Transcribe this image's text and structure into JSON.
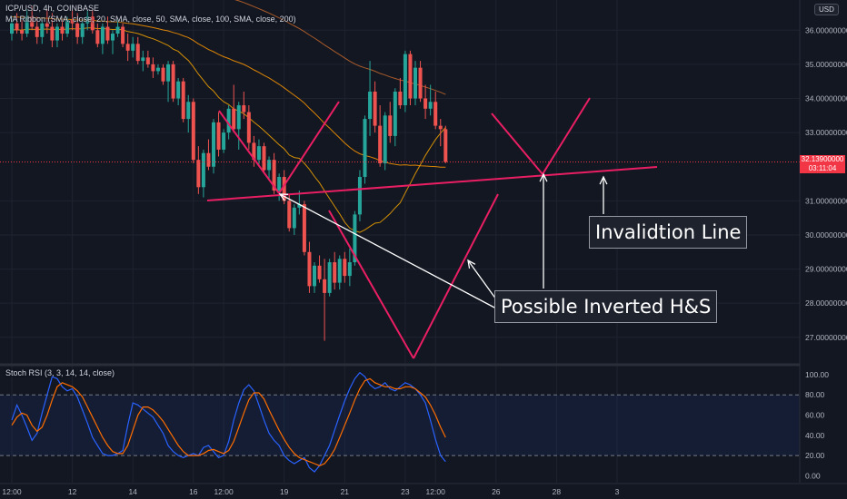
{
  "header": {
    "symbol_line": "ICP/USD, 4h, COINBASE",
    "ma_line": "MA Ribbon (SMA, close, 20, SMA, close, 50, SMA, close, 100, SMA, close, 200)",
    "stoch_line": "Stoch RSI (3, 3, 14, 14, close)",
    "currency_badge": "USD"
  },
  "last_price": {
    "price": "32.13900000",
    "countdown": "03:11:04",
    "color": "#f23645"
  },
  "annotations": {
    "invalidation": "Invalidtion Line",
    "pattern": "Possible Inverted H&S"
  },
  "colors": {
    "up": "#26a69a",
    "down": "#ef5350",
    "drawing": "#e91e63",
    "ma20": "#f7a600",
    "ma50": "#ff9800",
    "ma100": "#c4672b",
    "stoch_k": "#2962ff",
    "stoch_d": "#ff6d00"
  },
  "chart_data": [
    {
      "type": "candlestick",
      "price_ticks": [
        "36.00000000",
        "35.00000000",
        "34.00000000",
        "33.00000000",
        "31.00000000",
        "30.00000000",
        "29.00000000",
        "28.00000000",
        "27.00000000"
      ],
      "price_tick_values": [
        36,
        35,
        34,
        33,
        31,
        30,
        29,
        28,
        27
      ],
      "ylim": [
        26.25,
        36.3
      ],
      "time_labels": [
        "12:00",
        "12",
        "14",
        "16",
        "12:00",
        "19",
        "21",
        "23",
        "12:00",
        "26",
        "28",
        "3"
      ],
      "time_label_candle_index": [
        0,
        12,
        24,
        36,
        42,
        54,
        66,
        78,
        84,
        96,
        108,
        120
      ],
      "candles": [
        [
          35.9,
          36.4,
          35.7,
          36.2
        ],
        [
          36.2,
          36.5,
          35.9,
          36.0
        ],
        [
          36.0,
          36.3,
          35.7,
          35.9
        ],
        [
          35.9,
          36.6,
          35.8,
          36.4
        ],
        [
          36.4,
          36.7,
          36.0,
          36.1
        ],
        [
          36.1,
          36.4,
          35.6,
          35.8
        ],
        [
          35.8,
          36.3,
          35.6,
          36.2
        ],
        [
          36.2,
          36.6,
          35.9,
          36.1
        ],
        [
          36.1,
          36.5,
          35.5,
          35.7
        ],
        [
          35.7,
          36.2,
          35.5,
          36.1
        ],
        [
          36.1,
          36.3,
          35.7,
          35.9
        ],
        [
          35.9,
          36.4,
          35.8,
          36.3
        ],
        [
          36.3,
          36.6,
          36.0,
          36.2
        ],
        [
          36.2,
          36.5,
          35.6,
          35.8
        ],
        [
          35.8,
          36.3,
          35.6,
          36.2
        ],
        [
          36.2,
          36.6,
          36.0,
          36.4
        ],
        [
          36.4,
          36.6,
          35.9,
          36.0
        ],
        [
          36.0,
          36.2,
          35.5,
          35.6
        ],
        [
          35.6,
          36.2,
          35.3,
          36.1
        ],
        [
          36.1,
          36.4,
          35.6,
          35.7
        ],
        [
          35.7,
          36.0,
          35.3,
          35.9
        ],
        [
          35.9,
          36.3,
          35.8,
          36.1
        ],
        [
          36.1,
          36.2,
          35.5,
          35.6
        ],
        [
          35.6,
          35.9,
          35.1,
          35.4
        ],
        [
          35.4,
          35.8,
          35.2,
          35.6
        ],
        [
          35.6,
          35.8,
          35.0,
          35.1
        ],
        [
          35.1,
          35.4,
          34.8,
          35.2
        ],
        [
          35.2,
          35.4,
          34.9,
          35.0
        ],
        [
          35.0,
          35.2,
          34.6,
          34.8
        ],
        [
          34.8,
          35.0,
          34.7,
          34.9
        ],
        [
          34.9,
          35.0,
          34.4,
          34.5
        ],
        [
          34.5,
          35.1,
          33.9,
          35.0
        ],
        [
          35.0,
          35.1,
          33.9,
          34.0
        ],
        [
          34.0,
          34.6,
          33.8,
          34.5
        ],
        [
          34.5,
          34.6,
          33.3,
          33.4
        ],
        [
          33.4,
          34.1,
          33.0,
          33.9
        ],
        [
          33.9,
          34.0,
          32.1,
          32.2
        ],
        [
          32.2,
          32.6,
          31.2,
          31.4
        ],
        [
          31.4,
          32.5,
          31.1,
          32.4
        ],
        [
          32.4,
          32.8,
          31.9,
          32.0
        ],
        [
          32.0,
          33.4,
          31.8,
          33.3
        ],
        [
          33.3,
          33.6,
          32.3,
          32.5
        ],
        [
          32.5,
          33.1,
          32.4,
          33.0
        ],
        [
          33.0,
          33.8,
          32.8,
          33.7
        ],
        [
          33.7,
          34.4,
          33.0,
          33.1
        ],
        [
          33.1,
          33.9,
          32.5,
          33.8
        ],
        [
          33.8,
          34.2,
          33.4,
          33.6
        ],
        [
          33.6,
          33.8,
          32.5,
          32.7
        ],
        [
          32.7,
          32.9,
          32.0,
          32.2
        ],
        [
          32.2,
          32.8,
          32.0,
          32.6
        ],
        [
          32.6,
          32.7,
          31.8,
          31.9
        ],
        [
          31.9,
          32.3,
          31.6,
          32.2
        ],
        [
          32.2,
          32.4,
          31.2,
          31.3
        ],
        [
          31.3,
          31.8,
          31.0,
          31.7
        ],
        [
          31.7,
          31.9,
          30.9,
          31.0
        ],
        [
          31.0,
          31.2,
          30.1,
          30.2
        ],
        [
          30.2,
          30.9,
          30.0,
          30.8
        ],
        [
          30.8,
          31.3,
          30.6,
          30.9
        ],
        [
          30.9,
          31.0,
          29.4,
          29.5
        ],
        [
          29.5,
          29.8,
          28.3,
          28.5
        ],
        [
          28.5,
          29.2,
          28.3,
          29.1
        ],
        [
          29.1,
          29.4,
          28.6,
          28.7
        ],
        [
          28.7,
          29.3,
          26.9,
          28.3
        ],
        [
          28.3,
          29.3,
          28.2,
          29.2
        ],
        [
          29.2,
          29.5,
          28.4,
          28.6
        ],
        [
          28.6,
          29.4,
          28.4,
          29.3
        ],
        [
          29.3,
          29.5,
          28.6,
          28.8
        ],
        [
          28.8,
          29.6,
          28.5,
          29.2
        ],
        [
          29.2,
          30.7,
          29.1,
          30.6
        ],
        [
          30.6,
          31.9,
          30.4,
          31.7
        ],
        [
          31.7,
          33.5,
          31.5,
          33.4
        ],
        [
          33.4,
          35.1,
          32.9,
          34.2
        ],
        [
          34.2,
          34.5,
          33.0,
          33.2
        ],
        [
          33.2,
          33.8,
          32.0,
          32.1
        ],
        [
          32.1,
          33.6,
          31.9,
          33.5
        ],
        [
          33.5,
          33.9,
          32.7,
          32.9
        ],
        [
          32.9,
          34.3,
          32.6,
          34.2
        ],
        [
          34.2,
          34.6,
          33.7,
          33.8
        ],
        [
          33.8,
          35.4,
          33.6,
          35.3
        ],
        [
          35.3,
          35.4,
          33.8,
          34.0
        ],
        [
          34.0,
          35.1,
          33.8,
          34.9
        ],
        [
          34.9,
          35.1,
          33.9,
          34.0
        ],
        [
          34.0,
          34.4,
          33.4,
          33.7
        ],
        [
          33.7,
          34.4,
          33.5,
          33.9
        ],
        [
          33.9,
          34.2,
          33.1,
          33.2
        ],
        [
          33.2,
          33.4,
          32.6,
          33.1
        ],
        [
          33.1,
          33.2,
          32.1,
          32.14
        ]
      ]
    },
    {
      "type": "line",
      "title": "Stoch RSI (3, 3, 14, 14, close)",
      "ticks": [
        "100.00",
        "80.00",
        "60.00",
        "40.00",
        "20.00",
        "0.00"
      ],
      "tick_values": [
        100,
        80,
        60,
        40,
        20,
        0
      ],
      "ylim": [
        -5,
        108
      ],
      "bands": [
        20,
        80
      ],
      "series": [
        {
          "values": [
            55,
            70,
            60,
            48,
            35,
            42,
            62,
            80,
            98,
            96,
            88,
            84,
            86,
            78,
            65,
            52,
            38,
            30,
            22,
            20,
            20,
            22,
            25,
            50,
            72,
            70,
            66,
            62,
            58,
            50,
            42,
            30,
            24,
            20,
            18,
            20,
            22,
            20,
            28,
            30,
            24,
            18,
            20,
            34,
            55,
            72,
            85,
            90,
            84,
            70,
            55,
            42,
            35,
            30,
            20,
            15,
            12,
            15,
            18,
            8,
            4,
            10,
            20,
            30,
            45,
            60,
            74,
            86,
            96,
            102,
            98,
            90,
            86,
            88,
            92,
            86,
            84,
            88,
            92,
            90,
            86,
            80,
            72,
            55,
            36,
            20,
            14
          ]
        },
        {
          "values": [
            50,
            58,
            62,
            60,
            50,
            44,
            48,
            60,
            75,
            88,
            92,
            90,
            88,
            84,
            78,
            68,
            58,
            48,
            38,
            30,
            24,
            22,
            22,
            30,
            45,
            60,
            68,
            68,
            65,
            60,
            54,
            46,
            38,
            30,
            24,
            20,
            20,
            20,
            22,
            25,
            26,
            24,
            22,
            25,
            34,
            48,
            62,
            75,
            82,
            82,
            76,
            65,
            55,
            45,
            36,
            28,
            22,
            18,
            16,
            14,
            12,
            10,
            12,
            18,
            26,
            38,
            50,
            62,
            75,
            86,
            94,
            96,
            92,
            90,
            88,
            88,
            86,
            86,
            88,
            88,
            86,
            82,
            78,
            70,
            60,
            48,
            38
          ]
        }
      ]
    }
  ]
}
